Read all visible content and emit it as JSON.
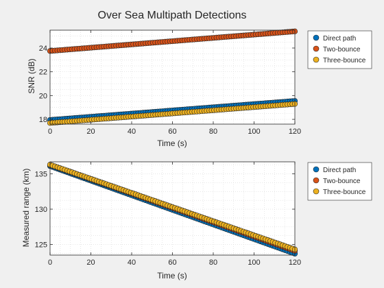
{
  "figure": {
    "title": "Over Sea Multipath Detections"
  },
  "chart_data": [
    {
      "type": "scatter",
      "title": "Over Sea Multipath Detections",
      "xlabel": "Time (s)",
      "ylabel": "SNR (dB)",
      "xlim": [
        0,
        120
      ],
      "ylim": [
        17.6,
        25.5
      ],
      "xticks": [
        0,
        20,
        40,
        60,
        80,
        100,
        120
      ],
      "yticks": [
        18,
        20,
        22,
        24
      ],
      "grid": "minor-dotted",
      "legend": "outside-top-right",
      "series": [
        {
          "name": "Direct path",
          "color": "#0072bd",
          "x_start": 0,
          "x_end": 120,
          "y_start": 17.95,
          "y_end": 19.55
        },
        {
          "name": "Two-bounce",
          "color": "#d95319",
          "x_start": 0,
          "x_end": 120,
          "y_start": 23.75,
          "y_end": 25.4
        },
        {
          "name": "Three-bounce",
          "color": "#edb120",
          "x_start": 0,
          "x_end": 120,
          "y_start": 17.7,
          "y_end": 19.3
        }
      ]
    },
    {
      "type": "scatter",
      "title": "",
      "xlabel": "Time (s)",
      "ylabel": "Measured range (km)",
      "xlim": [
        0,
        120
      ],
      "ylim": [
        123.5,
        136.7
      ],
      "xticks": [
        0,
        20,
        40,
        60,
        80,
        100,
        120
      ],
      "yticks": [
        125,
        130,
        135
      ],
      "grid": "minor-dotted",
      "legend": "outside-top-right",
      "series": [
        {
          "name": "Direct path",
          "color": "#0072bd",
          "x_start": 0,
          "x_end": 120,
          "y_start": 136.1,
          "y_end": 123.7
        },
        {
          "name": "Two-bounce",
          "color": "#d95319",
          "x_start": 0,
          "x_end": 120,
          "y_start": 136.25,
          "y_end": 124.1
        },
        {
          "name": "Three-bounce",
          "color": "#edb120",
          "x_start": 0,
          "x_end": 120,
          "y_start": 136.3,
          "y_end": 124.3
        }
      ]
    }
  ]
}
